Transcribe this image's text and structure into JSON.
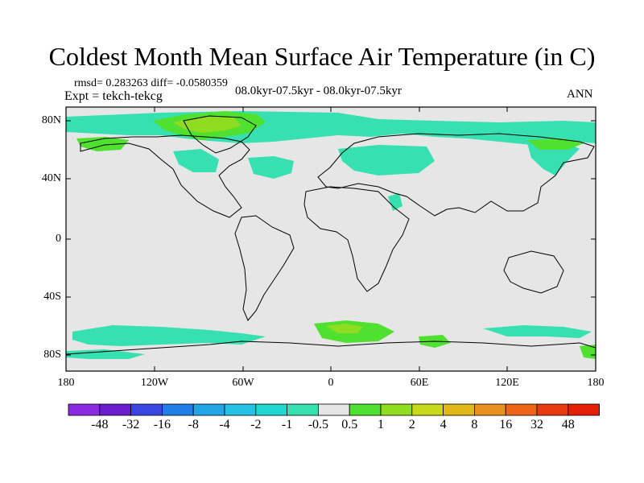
{
  "title": "Coldest Month Mean Surface Air Temperature (in C)",
  "stats_line": "rmsd= 0.283263 diff= -0.0580359",
  "expt_line": "Expt = tekch-tekcg",
  "period_line": "08.0kyr-07.5kyr - 08.0kyr-07.5kyr",
  "season": "ANN",
  "lat_labels": [
    "80N",
    "40N",
    "0",
    "40S",
    "80S"
  ],
  "lon_labels": [
    "180",
    "120W",
    "60W",
    "0",
    "60E",
    "120E",
    "180"
  ],
  "colorbar": {
    "labels": [
      "-48",
      "-32",
      "-16",
      "-8",
      "-4",
      "-2",
      "-1",
      "-0.5",
      "0.5",
      "1",
      "2",
      "4",
      "8",
      "16",
      "32",
      "48"
    ],
    "colors": [
      "#8a2be2",
      "#6a1ed0",
      "#3b46e0",
      "#1f7fe6",
      "#22a6e6",
      "#25c2e6",
      "#20d6d0",
      "#36e0b0",
      "#e6e6e6",
      "#50e030",
      "#90dc20",
      "#c8d81a",
      "#e0b81a",
      "#e89020",
      "#ec6418",
      "#e83a10",
      "#e41f08"
    ]
  },
  "map": {
    "field_colors": {
      "background": "#e6e6e6",
      "neg_small": "#36e0b0",
      "neg_mid": "#25c2e6",
      "pos_small": "#50e030",
      "pos_mid": "#90dc20",
      "pos_high": "#c8d81a"
    }
  }
}
